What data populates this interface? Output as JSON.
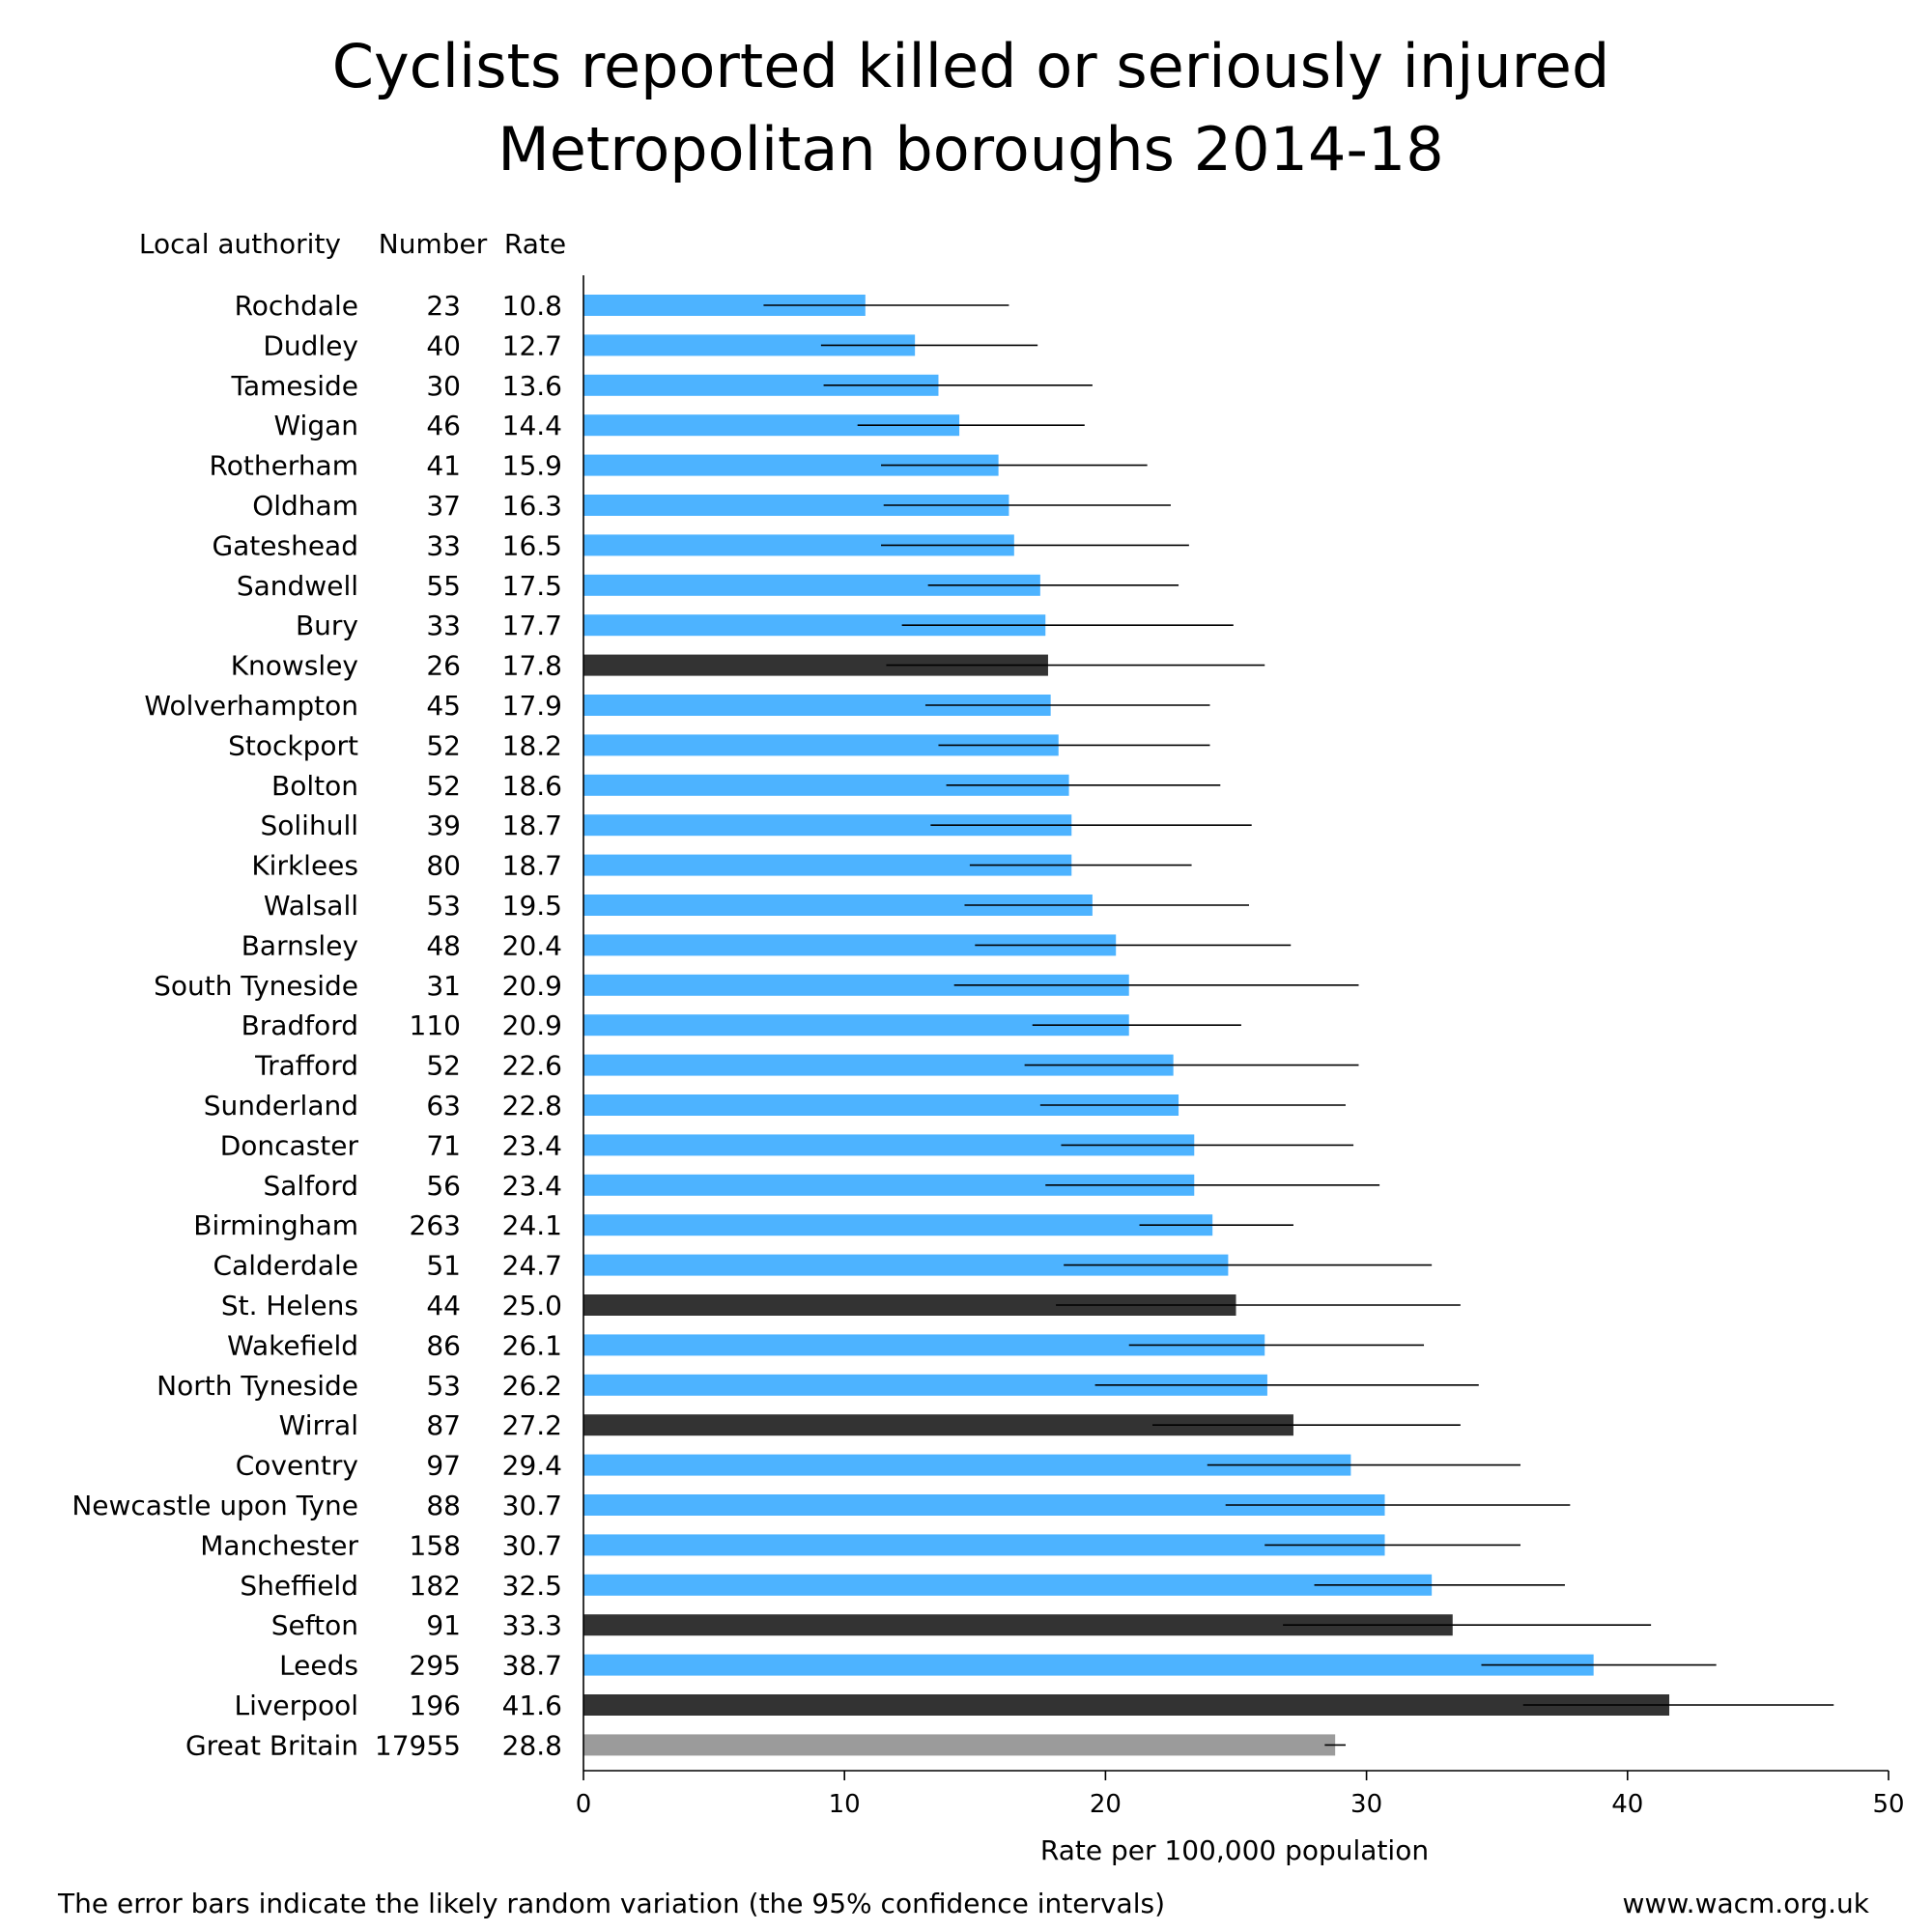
{
  "chart_data": {
    "type": "bar",
    "orientation": "horizontal",
    "title": [
      "Cyclists reported killed or seriously injured",
      "Metropolitan boroughs 2014-18"
    ],
    "column_headers": {
      "authority": "Local authority",
      "number": "Number",
      "rate": "Rate"
    },
    "xlabel": "Rate per 100,000 population",
    "xlim": [
      0,
      50
    ],
    "xticks": [
      0,
      10,
      20,
      30,
      40,
      50
    ],
    "grid": false,
    "footnote": "The error bars indicate the likely random variation (the 95% confidence intervals)",
    "source": "www.wacm.org.uk",
    "colors": {
      "default": "#4db3ff",
      "highlight": "#333333",
      "reference": "#9b9b9b"
    },
    "rows": [
      {
        "name": "Rochdale",
        "number": "23",
        "rate": "10.8",
        "value": 10.8,
        "ci": [
          6.9,
          16.3
        ],
        "group": "default"
      },
      {
        "name": "Dudley",
        "number": "40",
        "rate": "12.7",
        "value": 12.7,
        "ci": [
          9.1,
          17.4
        ],
        "group": "default"
      },
      {
        "name": "Tameside",
        "number": "30",
        "rate": "13.6",
        "value": 13.6,
        "ci": [
          9.2,
          19.5
        ],
        "group": "default"
      },
      {
        "name": "Wigan",
        "number": "46",
        "rate": "14.4",
        "value": 14.4,
        "ci": [
          10.5,
          19.2
        ],
        "group": "default"
      },
      {
        "name": "Rotherham",
        "number": "41",
        "rate": "15.9",
        "value": 15.9,
        "ci": [
          11.4,
          21.6
        ],
        "group": "default"
      },
      {
        "name": "Oldham",
        "number": "37",
        "rate": "16.3",
        "value": 16.3,
        "ci": [
          11.5,
          22.5
        ],
        "group": "default"
      },
      {
        "name": "Gateshead",
        "number": "33",
        "rate": "16.5",
        "value": 16.5,
        "ci": [
          11.4,
          23.2
        ],
        "group": "default"
      },
      {
        "name": "Sandwell",
        "number": "55",
        "rate": "17.5",
        "value": 17.5,
        "ci": [
          13.2,
          22.8
        ],
        "group": "default"
      },
      {
        "name": "Bury",
        "number": "33",
        "rate": "17.7",
        "value": 17.7,
        "ci": [
          12.2,
          24.9
        ],
        "group": "default"
      },
      {
        "name": "Knowsley",
        "number": "26",
        "rate": "17.8",
        "value": 17.8,
        "ci": [
          11.6,
          26.1
        ],
        "group": "highlight"
      },
      {
        "name": "Wolverhampton",
        "number": "45",
        "rate": "17.9",
        "value": 17.9,
        "ci": [
          13.1,
          24.0
        ],
        "group": "default"
      },
      {
        "name": "Stockport",
        "number": "52",
        "rate": "18.2",
        "value": 18.2,
        "ci": [
          13.6,
          24.0
        ],
        "group": "default"
      },
      {
        "name": "Bolton",
        "number": "52",
        "rate": "18.6",
        "value": 18.6,
        "ci": [
          13.9,
          24.4
        ],
        "group": "default"
      },
      {
        "name": "Solihull",
        "number": "39",
        "rate": "18.7",
        "value": 18.7,
        "ci": [
          13.3,
          25.6
        ],
        "group": "default"
      },
      {
        "name": "Kirklees",
        "number": "80",
        "rate": "18.7",
        "value": 18.7,
        "ci": [
          14.8,
          23.3
        ],
        "group": "default"
      },
      {
        "name": "Walsall",
        "number": "53",
        "rate": "19.5",
        "value": 19.5,
        "ci": [
          14.6,
          25.5
        ],
        "group": "default"
      },
      {
        "name": "Barnsley",
        "number": "48",
        "rate": "20.4",
        "value": 20.4,
        "ci": [
          15.0,
          27.1
        ],
        "group": "default"
      },
      {
        "name": "South Tyneside",
        "number": "31",
        "rate": "20.9",
        "value": 20.9,
        "ci": [
          14.2,
          29.7
        ],
        "group": "default"
      },
      {
        "name": "Bradford",
        "number": "110",
        "rate": "20.9",
        "value": 20.9,
        "ci": [
          17.2,
          25.2
        ],
        "group": "default"
      },
      {
        "name": "Trafford",
        "number": "52",
        "rate": "22.6",
        "value": 22.6,
        "ci": [
          16.9,
          29.7
        ],
        "group": "default"
      },
      {
        "name": "Sunderland",
        "number": "63",
        "rate": "22.8",
        "value": 22.8,
        "ci": [
          17.5,
          29.2
        ],
        "group": "default"
      },
      {
        "name": "Doncaster",
        "number": "71",
        "rate": "23.4",
        "value": 23.4,
        "ci": [
          18.3,
          29.5
        ],
        "group": "default"
      },
      {
        "name": "Salford",
        "number": "56",
        "rate": "23.4",
        "value": 23.4,
        "ci": [
          17.7,
          30.5
        ],
        "group": "default"
      },
      {
        "name": "Birmingham",
        "number": "263",
        "rate": "24.1",
        "value": 24.1,
        "ci": [
          21.3,
          27.2
        ],
        "group": "default"
      },
      {
        "name": "Calderdale",
        "number": "51",
        "rate": "24.7",
        "value": 24.7,
        "ci": [
          18.4,
          32.5
        ],
        "group": "default"
      },
      {
        "name": "St. Helens",
        "number": "44",
        "rate": "25.0",
        "value": 25.0,
        "ci": [
          18.1,
          33.6
        ],
        "group": "highlight"
      },
      {
        "name": "Wakefield",
        "number": "86",
        "rate": "26.1",
        "value": 26.1,
        "ci": [
          20.9,
          32.2
        ],
        "group": "default"
      },
      {
        "name": "North Tyneside",
        "number": "53",
        "rate": "26.2",
        "value": 26.2,
        "ci": [
          19.6,
          34.3
        ],
        "group": "default"
      },
      {
        "name": "Wirral",
        "number": "87",
        "rate": "27.2",
        "value": 27.2,
        "ci": [
          21.8,
          33.6
        ],
        "group": "highlight"
      },
      {
        "name": "Coventry",
        "number": "97",
        "rate": "29.4",
        "value": 29.4,
        "ci": [
          23.9,
          35.9
        ],
        "group": "default"
      },
      {
        "name": "Newcastle upon Tyne",
        "number": "88",
        "rate": "30.7",
        "value": 30.7,
        "ci": [
          24.6,
          37.8
        ],
        "group": "default"
      },
      {
        "name": "Manchester",
        "number": "158",
        "rate": "30.7",
        "value": 30.7,
        "ci": [
          26.1,
          35.9
        ],
        "group": "default"
      },
      {
        "name": "Sheffield",
        "number": "182",
        "rate": "32.5",
        "value": 32.5,
        "ci": [
          28.0,
          37.6
        ],
        "group": "default"
      },
      {
        "name": "Sefton",
        "number": "91",
        "rate": "33.3",
        "value": 33.3,
        "ci": [
          26.8,
          40.9
        ],
        "group": "highlight"
      },
      {
        "name": "Leeds",
        "number": "295",
        "rate": "38.7",
        "value": 38.7,
        "ci": [
          34.4,
          43.4
        ],
        "group": "default"
      },
      {
        "name": "Liverpool",
        "number": "196",
        "rate": "41.6",
        "value": 41.6,
        "ci": [
          36.0,
          47.9
        ],
        "group": "highlight"
      },
      {
        "name": "Great Britain",
        "number": "17955",
        "rate": "28.8",
        "value": 28.8,
        "ci": [
          28.4,
          29.2
        ],
        "group": "reference"
      }
    ]
  }
}
